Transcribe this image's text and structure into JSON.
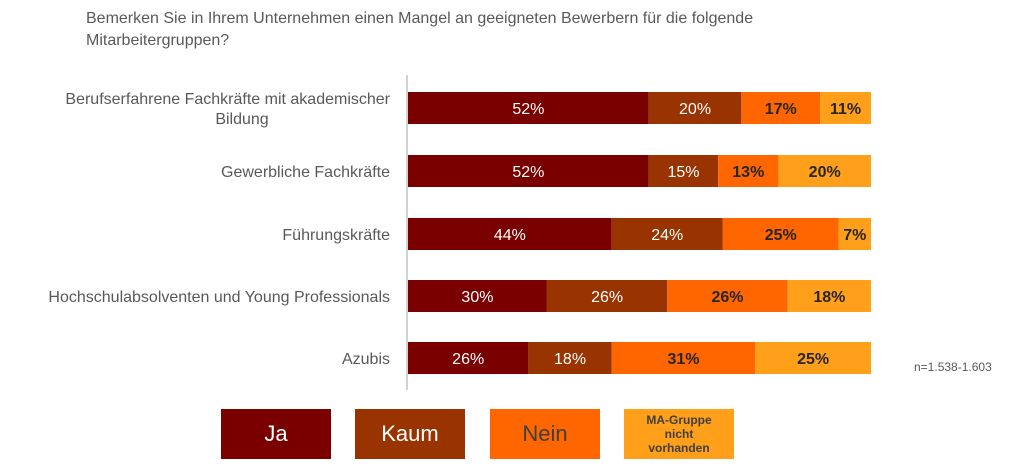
{
  "chart_data": {
    "type": "bar",
    "orientation": "horizontal",
    "stacked": true,
    "title": "Bemerken Sie in Ihrem Unternehmen einen Mangel an geeigneten Bewerbern für die folgende Mitarbeitergruppen?",
    "categories": [
      "Berufserfahrene Fachkräfte mit akademischer Bildung",
      "Gewerbliche Fachkräfte",
      "Führungskräfte",
      "Hochschulabsolventen und Young Professionals",
      "Azubis"
    ],
    "series": [
      {
        "name": "Ja",
        "values": [
          52,
          52,
          44,
          30,
          26
        ],
        "color": "#7a0000",
        "label_color": "#ffffff",
        "label_bold": false
      },
      {
        "name": "Kaum",
        "values": [
          20,
          15,
          24,
          26,
          18
        ],
        "color": "#993300",
        "label_color": "#ffffff",
        "label_bold": false
      },
      {
        "name": "Nein",
        "values": [
          17,
          13,
          25,
          26,
          31
        ],
        "color": "#ff6600",
        "label_color": "#262626",
        "label_bold": true
      },
      {
        "name": "MA-Gruppe nicht vorhanden",
        "values": [
          11,
          20,
          7,
          18,
          25
        ],
        "color": "#ff9f1a",
        "label_color": "#262626",
        "label_bold": true
      }
    ],
    "value_suffix": "%",
    "xlim": [
      0,
      100
    ],
    "grid": false,
    "legend_position": "bottom"
  },
  "note": "n=1.538-1.603",
  "legend": [
    {
      "label": "Ja",
      "color": "#7a0000",
      "text_color": "#ffffff"
    },
    {
      "label": "Kaum",
      "color": "#993300",
      "text_color": "#ffffff"
    },
    {
      "label": "Nein",
      "color": "#ff6600",
      "text_color": "#404040"
    },
    {
      "label": "MA-Gruppe nicht vorhanden",
      "color": "#ff9f1a",
      "text_color": "#404040"
    }
  ]
}
